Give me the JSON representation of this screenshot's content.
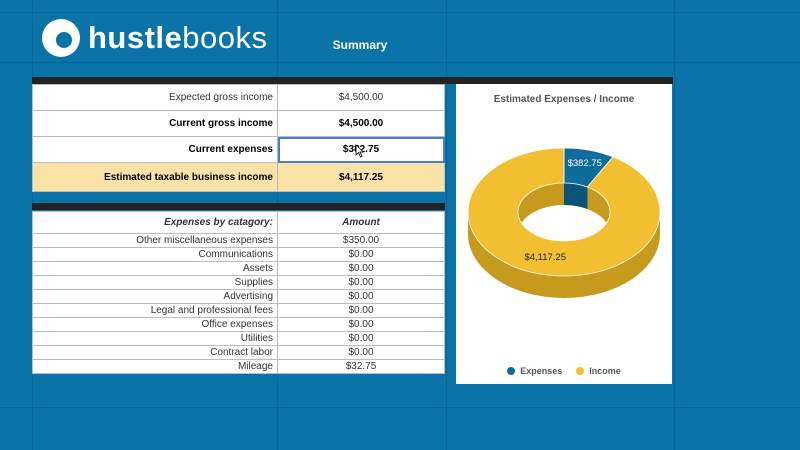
{
  "header": {
    "logo_bold": "hustle",
    "logo_light": "books",
    "sheet_title": "Summary"
  },
  "summary": {
    "rows": [
      {
        "label": "Expected gross income",
        "value": "$4,500.00"
      },
      {
        "label": "Current gross income",
        "value": "$4,500.00"
      },
      {
        "label": "Current expenses",
        "value": "$382.75"
      },
      {
        "label": "Estimated taxable business income",
        "value": "$4,117.25"
      }
    ]
  },
  "expenses": {
    "header_label": "Expenses by catagory:",
    "header_value": "Amount",
    "rows": [
      {
        "label": "Other miscellaneous expenses",
        "value": "$350.00"
      },
      {
        "label": "Communications",
        "value": "$0.00"
      },
      {
        "label": "Assets",
        "value": "$0.00"
      },
      {
        "label": "Supplies",
        "value": "$0.00"
      },
      {
        "label": "Advertising",
        "value": "$0.00"
      },
      {
        "label": "Legal and professional fees",
        "value": "$0.00"
      },
      {
        "label": "Office expenses",
        "value": "$0.00"
      },
      {
        "label": "Utilities",
        "value": "$0.00"
      },
      {
        "label": "Contract labor",
        "value": "$0.00"
      },
      {
        "label": "Mileage",
        "value": "$32.75"
      }
    ]
  },
  "colors": {
    "background": "#0a74a8",
    "highlight": "#fbe3a7",
    "expenses": "#0f6d9e",
    "income": "#f2bf30"
  },
  "chart_data": {
    "type": "pie",
    "title": "Estimated Expenses / Income",
    "categories": [
      "Expenses",
      "Income"
    ],
    "values": [
      382.75,
      4117.25
    ],
    "data_labels": [
      "$382.75",
      "$4,117.25"
    ],
    "legend_position": "bottom"
  }
}
